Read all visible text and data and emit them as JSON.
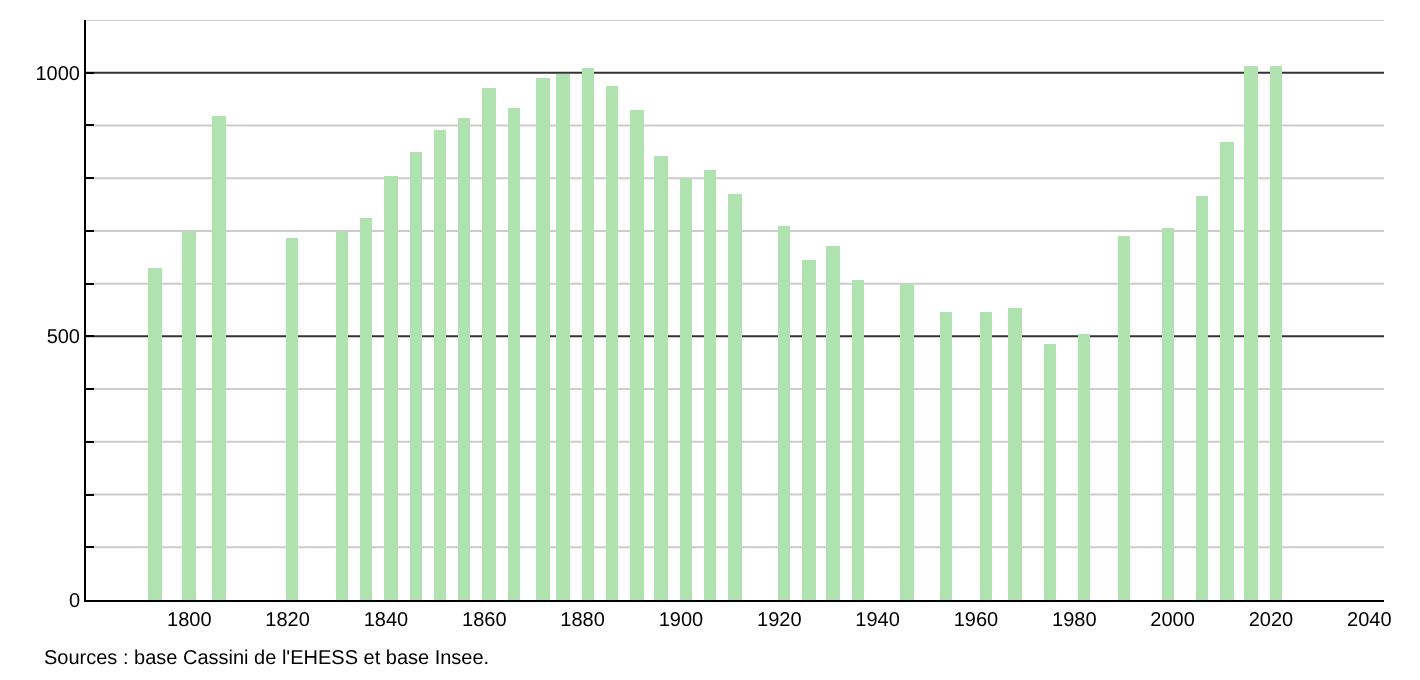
{
  "chart_data": {
    "type": "bar",
    "x": [
      1793,
      1800,
      1806,
      1821,
      1831,
      1836,
      1841,
      1846,
      1851,
      1856,
      1861,
      1866,
      1872,
      1876,
      1881,
      1886,
      1891,
      1896,
      1901,
      1906,
      1911,
      1921,
      1926,
      1931,
      1936,
      1946,
      1954,
      1962,
      1968,
      1975,
      1982,
      1990,
      1999,
      2006,
      2011,
      2016,
      2021
    ],
    "values": [
      631,
      697,
      919,
      687,
      697,
      726,
      806,
      850,
      890,
      915,
      970,
      935,
      989,
      999,
      1008,
      976,
      929,
      843,
      802,
      815,
      771,
      710,
      646,
      670,
      608,
      600,
      548,
      548,
      554,
      485,
      504,
      692,
      706,
      767,
      868,
      1014,
      1011
    ],
    "color": "#b0e3b0",
    "xlim": [
      1779,
      2043
    ],
    "xticks": [
      1800,
      1820,
      1840,
      1860,
      1880,
      1900,
      1920,
      1940,
      1960,
      1980,
      2000,
      2020,
      2040
    ],
    "ylim": [
      0,
      1100
    ],
    "yticks": [
      0,
      {
        "value": 100,
        "label": null
      },
      {
        "value": 200,
        "label": null
      },
      {
        "value": 300,
        "label": null
      },
      {
        "value": 400,
        "label": null
      },
      500,
      {
        "value": 600,
        "label": null
      },
      {
        "value": 700,
        "label": null
      },
      {
        "value": 800,
        "label": null
      },
      {
        "value": 900,
        "label": null
      },
      1000,
      {
        "value": 1100,
        "label": null
      }
    ],
    "grid": "y",
    "annotations": [
      "Sources : base Cassini de l'EHESS et base Insee."
    ]
  }
}
